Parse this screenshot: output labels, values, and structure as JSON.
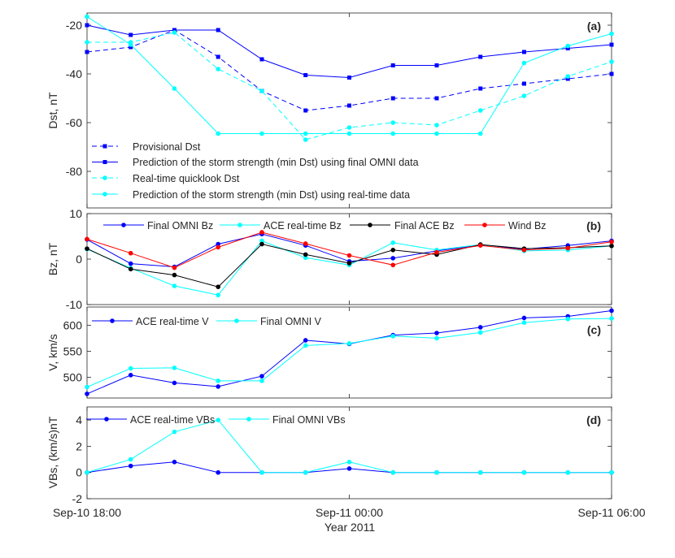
{
  "figure": {
    "xlabel": "Year 2011",
    "x_tick_labels": [
      "Sep-10 18:00",
      "Sep-11 00:00",
      "Sep-11 06:00"
    ],
    "x_tick_hours": [
      0,
      6,
      12
    ],
    "xlim_hours": [
      0,
      12
    ]
  },
  "colors": {
    "blue": "#0000ff",
    "cyan": "#00ffff",
    "black": "#000000",
    "red": "#ff0000"
  },
  "chart_data": [
    {
      "type": "line",
      "panel": "(a)",
      "ylabel": "Dst, nT",
      "ylim": [
        -95,
        -15
      ],
      "yticks": [
        -80,
        -60,
        -40,
        -20
      ],
      "legend_position": "bottom-left",
      "x_hours": [
        0,
        1,
        2,
        3,
        4,
        5,
        6,
        7,
        8,
        9,
        10,
        11,
        12
      ],
      "series": [
        {
          "name": "Provisional Dst",
          "color": "#0000ff",
          "dash": true,
          "marker": "square",
          "values": [
            -31,
            -29,
            -22,
            -33,
            -47,
            -55,
            -53,
            -50,
            -50,
            -46,
            -44,
            -42,
            -40
          ]
        },
        {
          "name": "Prediction of the storm strength (min Dst) using final OMNI data",
          "color": "#0000ff",
          "dash": false,
          "marker": "square",
          "values": [
            -20,
            -24,
            -22,
            -22,
            -34,
            -40.5,
            -41.5,
            -36.5,
            -36.5,
            -33,
            -31,
            -29.5,
            -28
          ]
        },
        {
          "name": "Real-time quicklook Dst",
          "color": "#00ffff",
          "dash": true,
          "marker": "circle",
          "values": [
            -27,
            -27,
            -23,
            -38,
            -47,
            -67,
            -62,
            -60,
            -61,
            -55,
            -49,
            -41,
            -35
          ]
        },
        {
          "name": "Prediction of the storm strength (min Dst) using real-time data",
          "color": "#00ffff",
          "dash": false,
          "marker": "circle",
          "values": [
            -16.5,
            -28,
            -46,
            -64.5,
            -64.5,
            -64.5,
            -64.5,
            -64.5,
            -64.5,
            -64.5,
            -35.5,
            -28.5,
            -23.5
          ]
        }
      ]
    },
    {
      "type": "line",
      "panel": "(b)",
      "ylabel": "Bz, nT",
      "ylim": [
        -10,
        10
      ],
      "yticks": [
        -10,
        0,
        10
      ],
      "legend_position": "top",
      "x_hours": [
        0,
        1,
        2,
        3,
        4,
        5,
        6,
        7,
        8,
        9,
        10,
        11,
        12
      ],
      "series": [
        {
          "name": "Final OMNI Bz",
          "color": "#0000ff",
          "marker": "circle",
          "values": [
            4.3,
            -1.0,
            -1.7,
            3.3,
            5.5,
            3.0,
            -0.5,
            0.2,
            1.8,
            3.1,
            2.2,
            3.0,
            4.0
          ]
        },
        {
          "name": "ACE real-time Bz",
          "color": "#00ffff",
          "marker": "circle",
          "values": [
            2.2,
            -2.0,
            -5.9,
            -7.9,
            4.0,
            0.3,
            -1.3,
            3.6,
            2.0,
            3.2,
            1.8,
            2.0,
            2.9
          ]
        },
        {
          "name": "Final ACE Bz",
          "color": "#000000",
          "marker": "circle",
          "values": [
            2.3,
            -2.2,
            -3.5,
            -6.1,
            3.3,
            1.0,
            -0.9,
            2.0,
            1.0,
            3.2,
            2.3,
            2.5,
            2.9
          ]
        },
        {
          "name": "Wind Bz",
          "color": "#ff0000",
          "marker": "circle",
          "values": [
            4.4,
            1.3,
            -1.9,
            2.6,
            5.9,
            3.4,
            0.8,
            -1.3,
            1.5,
            3.0,
            2.0,
            2.4,
            3.8
          ]
        }
      ]
    },
    {
      "type": "line",
      "panel": "(c)",
      "ylabel": "V, km/s",
      "ylim": [
        460,
        635
      ],
      "yticks": [
        500,
        550,
        600
      ],
      "legend_position": "top-left",
      "x_hours": [
        0,
        1,
        2,
        3,
        4,
        5,
        6,
        7,
        8,
        9,
        10,
        11,
        12
      ],
      "series": [
        {
          "name": "ACE real-time V",
          "color": "#0000ff",
          "marker": "circle",
          "values": [
            468,
            504,
            489,
            482,
            502,
            571,
            564,
            581,
            585,
            596,
            614,
            617,
            628
          ]
        },
        {
          "name": "Final OMNI V",
          "color": "#00ffff",
          "marker": "circle",
          "values": [
            481,
            517,
            518,
            493,
            493,
            561,
            565,
            579,
            575,
            586,
            605,
            612,
            613
          ]
        }
      ]
    },
    {
      "type": "line",
      "panel": "(d)",
      "ylabel": "VBs, (km/s)nT",
      "ylim": [
        -2,
        5
      ],
      "yticks": [
        -2,
        0,
        2,
        4
      ],
      "legend_position": "top",
      "x_hours": [
        0,
        1,
        2,
        3,
        4,
        5,
        6,
        7,
        8,
        9,
        10,
        11,
        12
      ],
      "series": [
        {
          "name": "ACE real-time VBs",
          "color": "#0000ff",
          "marker": "circle",
          "values": [
            0,
            0.5,
            0.8,
            0,
            0,
            0,
            0.3,
            0,
            0,
            0,
            0,
            0,
            0
          ]
        },
        {
          "name": "Final OMNI VBs",
          "color": "#00ffff",
          "marker": "circle",
          "values": [
            0,
            1.0,
            3.1,
            4.0,
            0,
            0,
            0.8,
            0,
            0,
            0,
            0,
            0,
            0
          ]
        }
      ]
    }
  ]
}
